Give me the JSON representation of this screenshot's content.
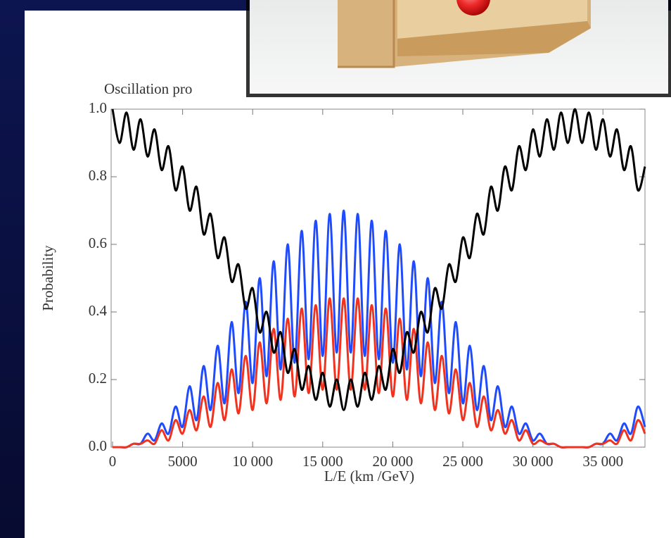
{
  "chart_data": {
    "type": "line",
    "title": "Oscillation pro",
    "x_label": "L/E (km /GeV)",
    "y_label": "Probability",
    "x": [
      0,
      500,
      1000,
      1500,
      2000,
      2500,
      3000,
      3500,
      4000,
      4500,
      5000,
      5500,
      6000,
      6500,
      7000,
      7500,
      8000,
      8500,
      9000,
      9500,
      10000,
      10500,
      11000,
      11500,
      12000,
      12500,
      13000,
      13500,
      14000,
      14500,
      15000,
      15500,
      16000,
      16500,
      17000,
      17500,
      18000,
      18500,
      19000,
      19500,
      20000,
      20500,
      21000,
      21500,
      22000,
      22500,
      23000,
      23500,
      24000,
      24500,
      25000,
      25500,
      26000,
      26500,
      27000,
      27500,
      28000,
      28500,
      29000,
      29500,
      30000,
      30500,
      31000,
      31500,
      32000,
      32500,
      33000,
      33500,
      34000,
      34500,
      35000,
      35500,
      36000,
      36500,
      37000,
      37500,
      38000
    ],
    "series": [
      {
        "color": "#000000",
        "values": [
          1.0,
          0.9,
          0.99,
          0.88,
          0.97,
          0.86,
          0.94,
          0.82,
          0.89,
          0.76,
          0.83,
          0.7,
          0.77,
          0.63,
          0.69,
          0.56,
          0.62,
          0.49,
          0.54,
          0.41,
          0.47,
          0.34,
          0.4,
          0.28,
          0.34,
          0.22,
          0.29,
          0.17,
          0.24,
          0.14,
          0.22,
          0.12,
          0.2,
          0.11,
          0.2,
          0.12,
          0.22,
          0.14,
          0.24,
          0.17,
          0.29,
          0.22,
          0.34,
          0.28,
          0.4,
          0.34,
          0.47,
          0.41,
          0.54,
          0.49,
          0.62,
          0.56,
          0.69,
          0.63,
          0.77,
          0.7,
          0.83,
          0.76,
          0.89,
          0.82,
          0.94,
          0.86,
          0.97,
          0.88,
          0.99,
          0.9,
          1.0,
          0.9,
          0.99,
          0.88,
          0.97,
          0.86,
          0.94,
          0.82,
          0.89,
          0.76,
          0.83
        ]
      },
      {
        "color": "#1f4bff",
        "values": [
          0,
          0.0,
          0.0,
          0.01,
          0.01,
          0.04,
          0.02,
          0.07,
          0.04,
          0.12,
          0.06,
          0.18,
          0.08,
          0.24,
          0.11,
          0.3,
          0.13,
          0.37,
          0.16,
          0.43,
          0.19,
          0.5,
          0.21,
          0.55,
          0.23,
          0.6,
          0.25,
          0.64,
          0.26,
          0.67,
          0.27,
          0.69,
          0.28,
          0.7,
          0.28,
          0.69,
          0.27,
          0.67,
          0.26,
          0.64,
          0.25,
          0.6,
          0.23,
          0.55,
          0.21,
          0.5,
          0.19,
          0.43,
          0.16,
          0.37,
          0.13,
          0.3,
          0.11,
          0.24,
          0.08,
          0.18,
          0.06,
          0.12,
          0.04,
          0.07,
          0.02,
          0.04,
          0.01,
          0.01,
          0.0,
          0.0,
          0,
          0.0,
          0.0,
          0.01,
          0.01,
          0.04,
          0.02,
          0.07,
          0.04,
          0.12,
          0.06
        ]
      },
      {
        "color": "#f0321e",
        "values": [
          0,
          0.0,
          0.0,
          0.01,
          0.01,
          0.02,
          0.01,
          0.05,
          0.02,
          0.08,
          0.04,
          0.11,
          0.05,
          0.15,
          0.06,
          0.19,
          0.08,
          0.23,
          0.1,
          0.27,
          0.11,
          0.31,
          0.13,
          0.35,
          0.14,
          0.38,
          0.15,
          0.41,
          0.16,
          0.42,
          0.17,
          0.44,
          0.17,
          0.44,
          0.17,
          0.44,
          0.17,
          0.42,
          0.16,
          0.41,
          0.15,
          0.38,
          0.14,
          0.35,
          0.13,
          0.31,
          0.11,
          0.27,
          0.1,
          0.23,
          0.08,
          0.19,
          0.06,
          0.15,
          0.05,
          0.11,
          0.04,
          0.08,
          0.02,
          0.05,
          0.01,
          0.02,
          0.01,
          0.01,
          0.0,
          0.0,
          0,
          0.0,
          0.0,
          0.01,
          0.01,
          0.02,
          0.01,
          0.05,
          0.02,
          0.08,
          0.04
        ]
      }
    ],
    "xlim": [
      -100,
      38000
    ],
    "ylim": [
      0,
      1
    ],
    "xticks": [
      0,
      5000,
      {
        "value": 10000,
        "label": "10 000"
      },
      {
        "value": 15000,
        "label": "15 000"
      },
      {
        "value": 20000,
        "label": "20 000"
      },
      {
        "value": 25000,
        "label": "25 000"
      },
      {
        "value": 30000,
        "label": "30 000"
      },
      {
        "value": 35000,
        "label": "35 000"
      }
    ],
    "yticks": [
      {
        "value": 0,
        "label": "0.0"
      },
      0.2,
      0.4,
      0.6,
      0.8,
      {
        "value": 1,
        "label": "1.0"
      }
    ]
  }
}
